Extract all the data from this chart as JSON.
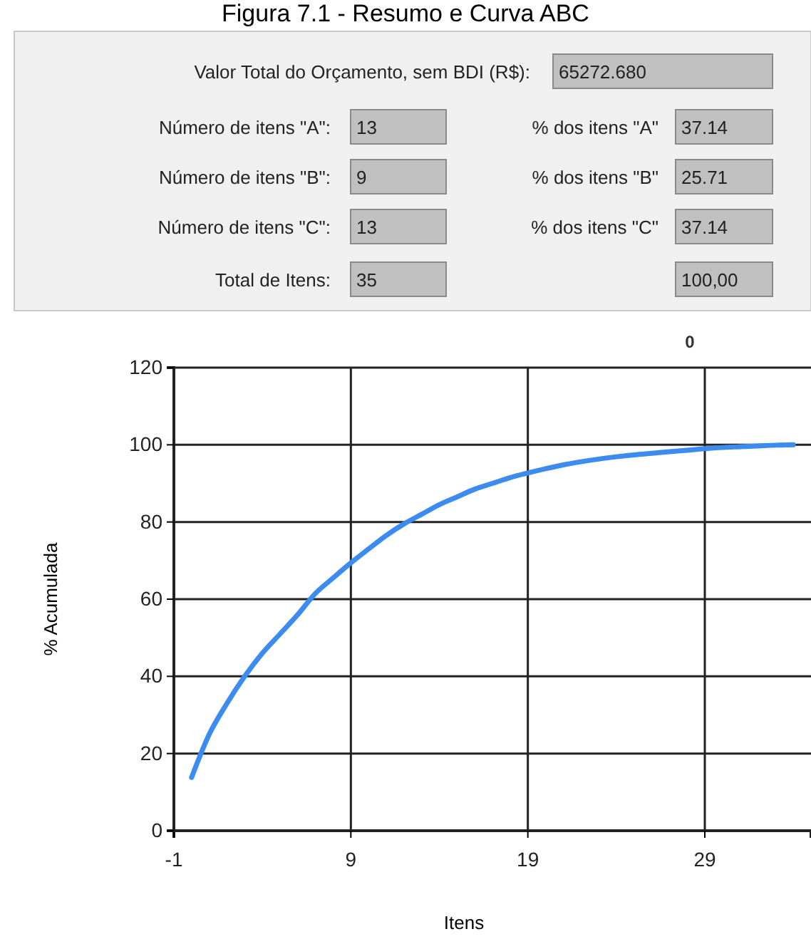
{
  "chart_data": [
    {
      "type": "other",
      "title": "Figura 7.1 - Resumo e Curva ABC",
      "annotations": [
        "Valor Total do Orçamento, sem BDI (R$):",
        "65272.680",
        "Número de itens \"A\":",
        "13",
        "% dos itens \"A\"",
        "37.14",
        "Número de itens \"B\":",
        "9",
        "% dos itens \"B\"",
        "25.71",
        "Número de itens \"C\":",
        "13",
        "% dos itens \"C\"",
        "37.14",
        "Total de Itens:",
        "35",
        "100,00"
      ]
    },
    {
      "type": "line",
      "xlabel": "Itens",
      "ylabel": "% Acumulada",
      "annotations": [
        "0"
      ],
      "x": [
        0,
        1,
        2,
        3,
        4,
        5,
        6,
        7,
        8,
        9,
        10,
        11,
        12,
        13,
        14,
        15,
        16,
        17,
        18,
        19,
        20,
        21,
        22,
        23,
        24,
        25,
        26,
        27,
        28,
        29,
        30,
        31,
        32,
        33,
        34
      ],
      "series": [
        {
          "color": "#3c8cf0",
          "values": [
            13.8,
            25,
            33,
            40,
            46,
            51,
            56,
            61.5,
            65.5,
            69.4,
            73,
            76.5,
            79.5,
            82,
            84.5,
            86.5,
            88.5,
            90,
            91.5,
            92.7,
            93.8,
            94.8,
            95.6,
            96.3,
            96.9,
            97.4,
            97.8,
            98.2,
            98.6,
            99,
            99.3,
            99.5,
            99.7,
            99.9,
            100
          ]
        }
      ],
      "xlim": [
        -1,
        35
      ],
      "ylim": [
        0,
        120
      ],
      "xticks": [
        -1,
        9,
        19,
        29
      ],
      "yticks": [
        0,
        20,
        40,
        60,
        80,
        100,
        120
      ],
      "grid": true,
      "marker": "none",
      "line_style": "solid"
    }
  ]
}
